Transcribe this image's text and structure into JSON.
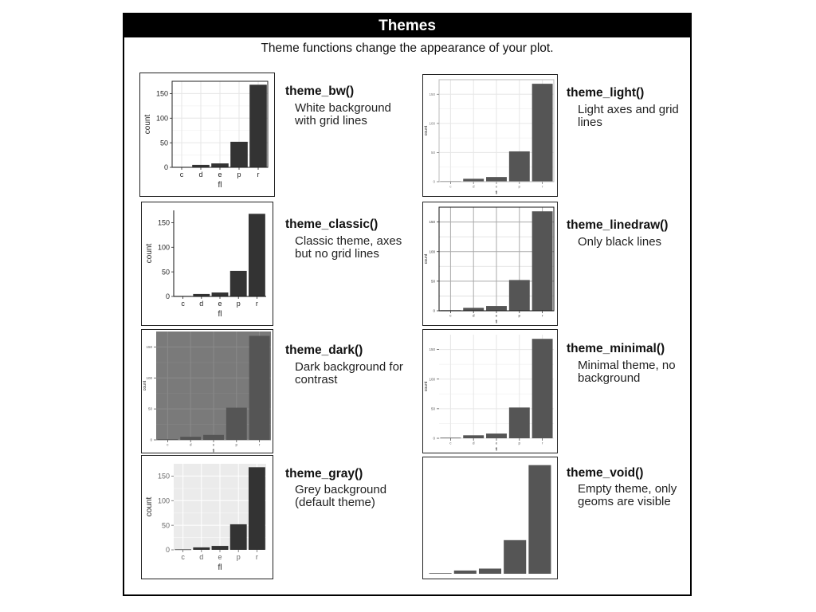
{
  "header": {
    "title": "Themes",
    "subtitle": "Theme functions change the appearance of your plot."
  },
  "themes": [
    {
      "id": "bw",
      "name": "theme_bw()",
      "desc": "White background with grid lines"
    },
    {
      "id": "light",
      "name": "theme_light()",
      "desc": "Light axes and grid lines"
    },
    {
      "id": "classic",
      "name": "theme_classic()",
      "desc": "Classic theme, axes but no grid lines"
    },
    {
      "id": "linedraw",
      "name": "theme_linedraw()",
      "desc": "Only black lines"
    },
    {
      "id": "dark",
      "name": "theme_dark()",
      "desc": "Dark background for contrast"
    },
    {
      "id": "minimal",
      "name": "theme_minimal()",
      "desc": "Minimal theme, no background"
    },
    {
      "id": "gray",
      "name": "theme_gray()",
      "desc": "Grey background (default theme)"
    },
    {
      "id": "void",
      "name": "theme_void()",
      "desc": "Empty theme, only geoms are visible"
    }
  ],
  "chart_data": {
    "type": "bar",
    "categories": [
      "c",
      "d",
      "e",
      "p",
      "r"
    ],
    "values": [
      1,
      5,
      8,
      52,
      168
    ],
    "xlabel": "fl",
    "ylabel": "count",
    "yticks": [
      0,
      50,
      100,
      150
    ],
    "ylim": [
      0,
      175
    ]
  }
}
